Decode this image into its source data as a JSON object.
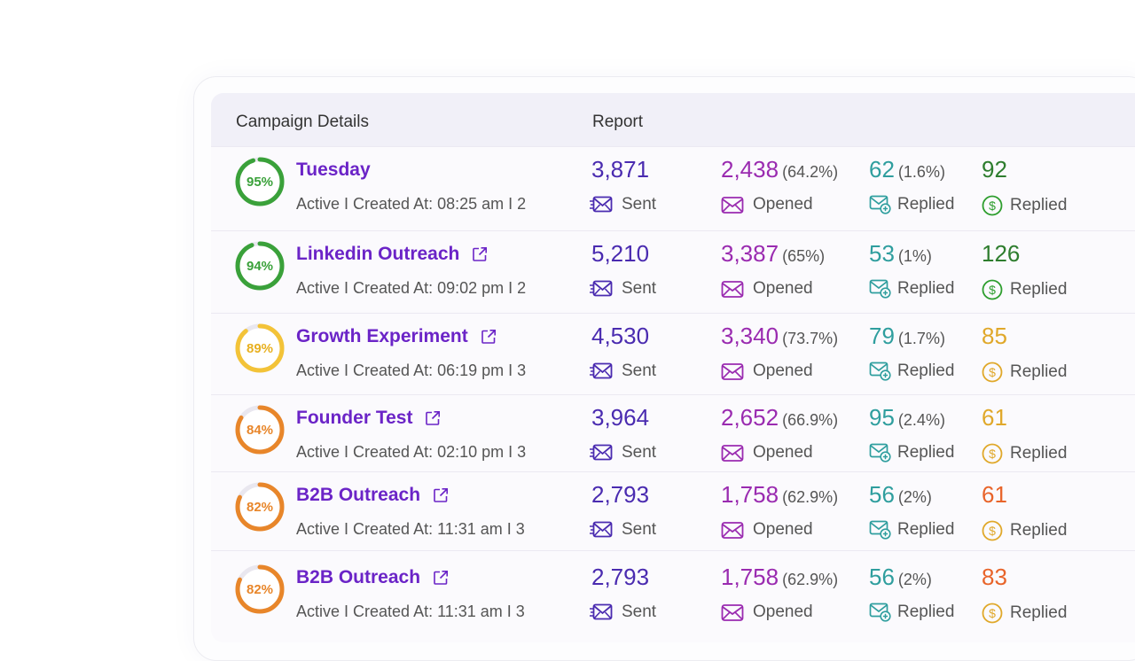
{
  "header": {
    "campaign_details": "Campaign Details",
    "report": "Report"
  },
  "labels": {
    "sent": "Sent",
    "opened": "Opened",
    "replied": "Replied",
    "replied_money": "Replied"
  },
  "colors": {
    "purple": "#6b24c7",
    "sent": "#4a2bb0",
    "opened": "#9a2bb0",
    "teal": "#2f9e9e",
    "green": "#3aa13a",
    "yellow": "#f3c338",
    "orange": "#e8862a",
    "red_orange": "#e8642a"
  },
  "rows": [
    {
      "score": "95%",
      "score_value": 95,
      "ring_color": "#3aa13a",
      "name": "Tuesday",
      "external_link": false,
      "meta": "Active I Created At: 08:25 am  I 2",
      "sent": "3,871",
      "opened": "2,438",
      "opened_pct": "(64.2%)",
      "replied": "62",
      "replied_pct": "(1.6%)",
      "revenue": "92",
      "revenue_color": "#2e7d2e",
      "revenue_icon_color": "#2e9e2e"
    },
    {
      "score": "94%",
      "score_value": 94,
      "ring_color": "#3aa13a",
      "name": "Linkedin Outreach",
      "external_link": true,
      "meta": "Active I Created At: 09:02 pm I 2",
      "sent": "5,210",
      "opened": "3,387",
      "opened_pct": "(65%)",
      "replied": "53",
      "replied_pct": "(1%)",
      "revenue": "126",
      "revenue_color": "#2e7d2e",
      "revenue_icon_color": "#2e9e2e"
    },
    {
      "score": "89%",
      "score_value": 89,
      "ring_color": "#f3c338",
      "name": "Growth Experiment",
      "external_link": true,
      "meta": "Active I Created At: 06:19 pm I 3",
      "sent": "4,530",
      "opened": "3,340",
      "opened_pct": "(73.7%)",
      "replied": "79",
      "replied_pct": "(1.7%)",
      "revenue": "85",
      "revenue_color": "#e0a82a",
      "revenue_icon_color": "#e0a82a"
    },
    {
      "score": "84%",
      "score_value": 84,
      "ring_color": "#e8862a",
      "name": "Founder Test",
      "external_link": true,
      "meta": "Active I Created At: 02:10 pm  I 3",
      "sent": "3,964",
      "opened": "2,652",
      "opened_pct": "(66.9%)",
      "replied": "95",
      "replied_pct": "(2.4%)",
      "revenue": "61",
      "revenue_color": "#e0a82a",
      "revenue_icon_color": "#e0a82a"
    },
    {
      "score": "82%",
      "score_value": 82,
      "ring_color": "#e8862a",
      "name": "B2B Outreach",
      "external_link": true,
      "meta": "Active I Created At: 11:31 am  I 3",
      "sent": "2,793",
      "opened": "1,758",
      "opened_pct": "(62.9%)",
      "replied": "56",
      "replied_pct": "(2%)",
      "revenue": "61",
      "revenue_color": "#e8642a",
      "revenue_icon_color": "#e0a82a"
    },
    {
      "score": "82%",
      "score_value": 82,
      "ring_color": "#e8862a",
      "name": "B2B Outreach",
      "external_link": true,
      "meta": "Active I Created At: 11:31 am  I 3",
      "sent": "2,793",
      "opened": "1,758",
      "opened_pct": "(62.9%)",
      "replied": "56",
      "replied_pct": "(2%)",
      "revenue": "83",
      "revenue_color": "#e8642a",
      "revenue_icon_color": "#e0a82a"
    }
  ]
}
